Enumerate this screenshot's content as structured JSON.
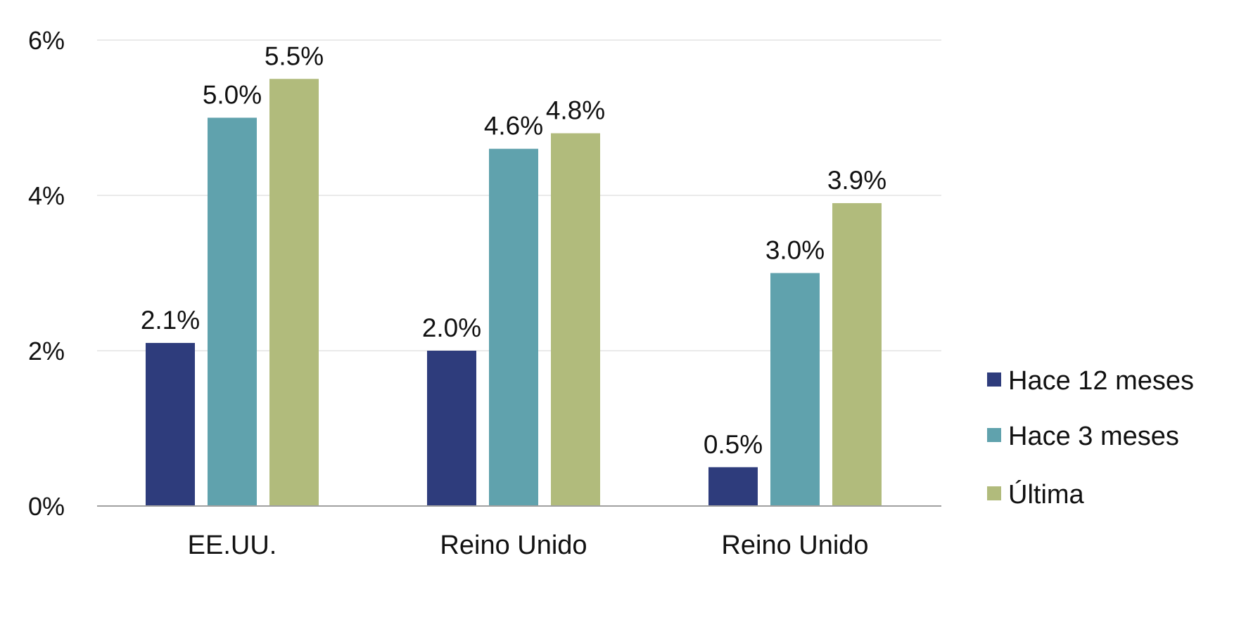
{
  "chart_data": {
    "type": "bar",
    "categories": [
      "EE.UU.",
      "Reino Unido",
      "Reino Unido"
    ],
    "series": [
      {
        "name": "Hace 12 meses",
        "values": [
          2.1,
          2.0,
          0.5
        ],
        "labels": [
          "2.1%",
          "2.0%",
          "0.5%"
        ]
      },
      {
        "name": "Hace 3 meses",
        "values": [
          5.0,
          4.6,
          3.0
        ],
        "labels": [
          "5.0%",
          "4.6%",
          "3.0%"
        ]
      },
      {
        "name": "Última",
        "values": [
          5.5,
          4.8,
          3.9
        ],
        "labels": [
          "5.5%",
          "4.8%",
          "3.9%"
        ]
      }
    ],
    "colors": [
      "#2e3c7c",
      "#60a2ad",
      "#b1bb7c"
    ],
    "ylim": [
      0,
      6
    ],
    "yticks": [
      0,
      2,
      4,
      6
    ],
    "ytick_labels": [
      "0%",
      "2%",
      "4%",
      "6%"
    ],
    "grid": true,
    "legend_position": "right",
    "title": "",
    "xlabel": "",
    "ylabel": ""
  }
}
